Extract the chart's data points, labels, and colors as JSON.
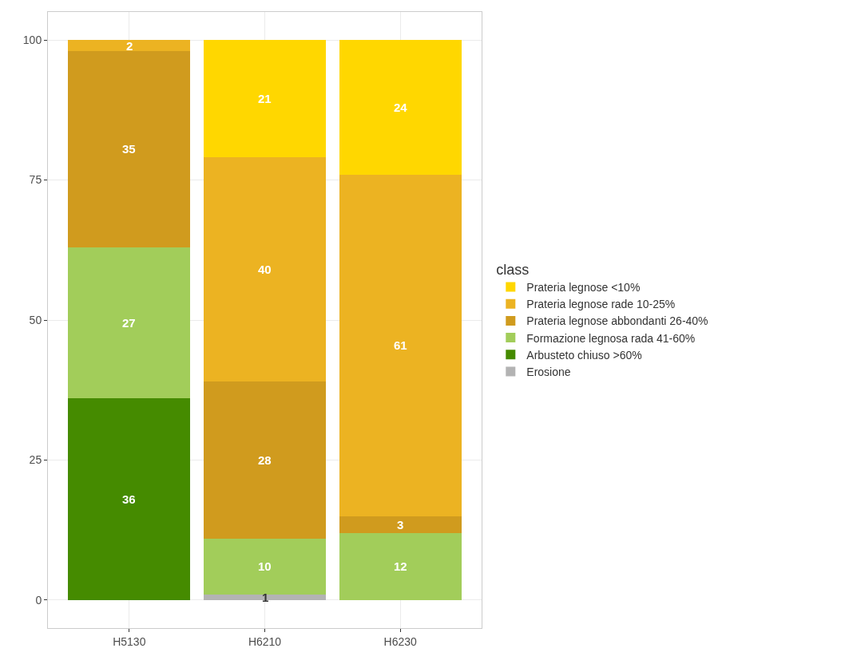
{
  "chart_data": {
    "type": "bar",
    "stacked": true,
    "categories": [
      "H5130",
      "H6210",
      "H6230"
    ],
    "series": [
      {
        "name": "Erosione",
        "color": "#b3b3b3",
        "values": [
          null,
          1,
          null
        ]
      },
      {
        "name": "Arbusteto chiuso >60%",
        "color": "#458b00",
        "values": [
          36,
          null,
          null
        ]
      },
      {
        "name": "Formazione legnosa rada 41-60%",
        "color": "#a2cd5a",
        "values": [
          27,
          10,
          12
        ]
      },
      {
        "name": "Prateria legnose abbondanti 26-40%",
        "color": "#d09b1e",
        "values": [
          35,
          28,
          3
        ]
      },
      {
        "name": "Prateria legnose rade 10-25%",
        "color": "#ecb322",
        "values": [
          2,
          40,
          61
        ]
      },
      {
        "name": "Prateria legnose <10%",
        "color": "#ffd700",
        "values": [
          null,
          21,
          24
        ]
      }
    ],
    "ylim": [
      -5,
      105
    ],
    "yticks": [
      0,
      25,
      50,
      75,
      100
    ],
    "grid": true,
    "legend": "right",
    "legend_title": "class",
    "data_labels": true
  }
}
